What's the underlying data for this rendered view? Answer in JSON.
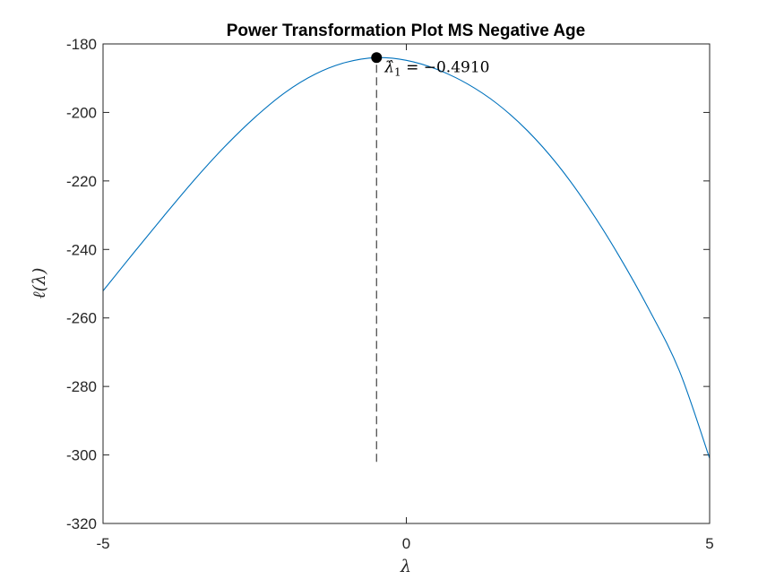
{
  "chart_data": {
    "type": "line",
    "title": "Power Transformation Plot MS Negative Age",
    "xlabel": "λ",
    "ylabel": "ℓ(λ)",
    "xlim": [
      -5,
      5
    ],
    "ylim": [
      -320,
      -180
    ],
    "xticks": [
      -5,
      0,
      5
    ],
    "yticks": [
      -320,
      -300,
      -280,
      -260,
      -240,
      -220,
      -200,
      -180
    ],
    "xtick_labels": [
      "-5",
      "0",
      "5"
    ],
    "ytick_labels": [
      "-320",
      "-300",
      "-280",
      "-260",
      "-240",
      "-220",
      "-200",
      "-180"
    ],
    "grid": false,
    "line_color": "#0072BD",
    "series": [
      {
        "x": [
          -5,
          -4.5,
          -4,
          -3.5,
          -3,
          -2.5,
          -2,
          -1.5,
          -1,
          -0.491,
          0,
          0.5,
          1,
          1.5,
          2,
          2.5,
          3,
          3.5,
          4,
          4.5,
          5
        ],
        "y": [
          -252.1,
          -241.1,
          -230.3,
          -219.8,
          -210.1,
          -201.5,
          -194.2,
          -188.8,
          -185.4,
          -184.0,
          -184.8,
          -187.4,
          -191.6,
          -197.5,
          -205.4,
          -215.4,
          -227.6,
          -241.7,
          -257.5,
          -275.4,
          -301.0
        ]
      }
    ],
    "peak": {
      "x": -0.491,
      "y": -184.0
    },
    "vline": {
      "x": -0.491,
      "y_from": -302,
      "y_to": -184.0
    },
    "annotation": {
      "symbol": "λ̂",
      "subscript": "1",
      "text": " = −0.4910"
    }
  }
}
